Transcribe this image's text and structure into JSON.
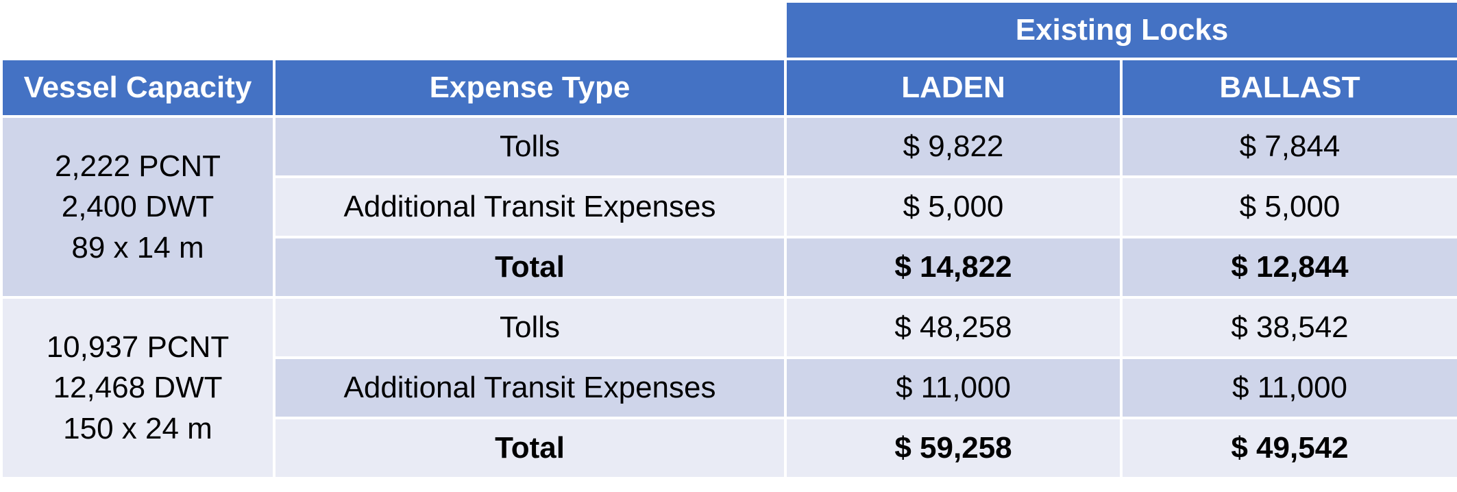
{
  "header": {
    "group_label": "Existing Locks",
    "columns": [
      "Vessel Capacity",
      "Expense Type",
      "LADEN",
      "BALLAST"
    ]
  },
  "groups": [
    {
      "capacity": [
        "2,222 PCNT",
        "2,400 DWT",
        "89 x 14 m"
      ],
      "rows": [
        {
          "expense": "Tolls",
          "laden": "$ 9,822",
          "ballast": "$ 7,844"
        },
        {
          "expense": "Additional Transit Expenses",
          "laden": "$ 5,000",
          "ballast": "$ 5,000"
        },
        {
          "expense": "Total",
          "laden": "$ 14,822",
          "ballast": "$ 12,844"
        }
      ]
    },
    {
      "capacity": [
        "10,937 PCNT",
        "12,468 DWT",
        "150 x 24 m"
      ],
      "rows": [
        {
          "expense": "Tolls",
          "laden": "$ 48,258",
          "ballast": "$ 38,542"
        },
        {
          "expense": "Additional Transit Expenses",
          "laden": "$ 11,000",
          "ballast": "$ 11,000"
        },
        {
          "expense": "Total",
          "laden": "$ 59,258",
          "ballast": "$ 49,542"
        }
      ]
    }
  ],
  "colors": {
    "header_bg": "#4472c4",
    "header_text": "#ffffff",
    "row_dark": "#cfd5ea",
    "row_light": "#e9ebf5",
    "border": "#ffffff"
  }
}
